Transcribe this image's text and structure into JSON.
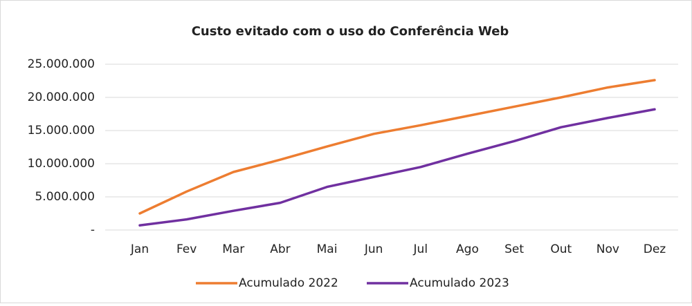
{
  "chart_data": {
    "type": "line",
    "title": "Custo evitado com o uso do Conferência Web",
    "categories": [
      "Jan",
      "Fev",
      "Mar",
      "Abr",
      "Mai",
      "Jun",
      "Jul",
      "Ago",
      "Set",
      "Out",
      "Nov",
      "Dez"
    ],
    "series": [
      {
        "name": "Acumulado 2022",
        "color": "#ed7d31",
        "values": [
          2500000,
          5800000,
          8750000,
          10600000,
          12600000,
          14500000,
          15800000,
          17200000,
          18600000,
          20000000,
          21500000,
          22600000
        ]
      },
      {
        "name": "Acumulado 2023",
        "color": "#7030a0",
        "values": [
          700000,
          1600000,
          2900000,
          4100000,
          6500000,
          8000000,
          9500000,
          11500000,
          13400000,
          15500000,
          16900000,
          18200000
        ]
      }
    ],
    "ylim": [
      0,
      25000000
    ],
    "yticks": [
      {
        "value": 0,
        "label": "-"
      },
      {
        "value": 5000000,
        "label": "5.000.000"
      },
      {
        "value": 10000000,
        "label": "10.000.000"
      },
      {
        "value": 15000000,
        "label": "15.000.000"
      },
      {
        "value": 20000000,
        "label": "20.000.000"
      },
      {
        "value": 25000000,
        "label": "25.000.000"
      }
    ],
    "grid": true,
    "legend": "bottom"
  }
}
